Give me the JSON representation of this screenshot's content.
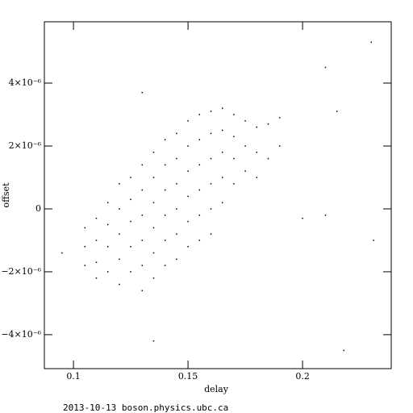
{
  "chart_data": {
    "type": "scatter",
    "xlabel": "delay",
    "ylabel": "offset",
    "footer": "2013-10-13 boson.physics.ubc.ca",
    "color": "#000000",
    "xlim": [
      0.0873,
      0.2387
    ],
    "ylim": [
      -5.08e-06,
      5.95e-06
    ],
    "xticks": [
      0.1,
      0.15,
      0.2
    ],
    "yticks": [
      {
        "value": -4e-06,
        "label": "−4×10⁻⁶"
      },
      {
        "value": -2e-06,
        "label": "−2×10⁻⁶"
      },
      0,
      {
        "value": 2e-06,
        "label": "2×10⁻⁶"
      },
      {
        "value": 4e-06,
        "label": "4×10⁻⁶"
      }
    ],
    "x": [
      0.105,
      0.105,
      0.105,
      0.11,
      0.11,
      0.11,
      0.11,
      0.115,
      0.115,
      0.115,
      0.115,
      0.12,
      0.12,
      0.12,
      0.12,
      0.12,
      0.125,
      0.125,
      0.125,
      0.125,
      0.125,
      0.13,
      0.13,
      0.13,
      0.13,
      0.13,
      0.13,
      0.135,
      0.135,
      0.135,
      0.135,
      0.135,
      0.135,
      0.14,
      0.14,
      0.14,
      0.14,
      0.14,
      0.14,
      0.145,
      0.145,
      0.145,
      0.145,
      0.145,
      0.145,
      0.15,
      0.15,
      0.15,
      0.15,
      0.15,
      0.15,
      0.155,
      0.155,
      0.155,
      0.155,
      0.155,
      0.155,
      0.16,
      0.16,
      0.16,
      0.16,
      0.16,
      0.16,
      0.165,
      0.165,
      0.165,
      0.165,
      0.165,
      0.17,
      0.17,
      0.17,
      0.17,
      0.175,
      0.175,
      0.175,
      0.18,
      0.18,
      0.18,
      0.185,
      0.185,
      0.19,
      0.19,
      0.23,
      0.231,
      0.21,
      0.218,
      0.135,
      0.095,
      0.2,
      0.21,
      0.13,
      0.215
    ],
    "y": [
      -1.2e-06,
      -6e-07,
      -1.8e-06,
      -3e-07,
      -1e-06,
      -1.7e-06,
      -2.2e-06,
      2e-07,
      -5e-07,
      -1.2e-06,
      -2e-06,
      8e-07,
      0,
      -8e-07,
      -1.6e-06,
      -2.4e-06,
      1e-06,
      3e-07,
      -4e-07,
      -1.2e-06,
      -2e-06,
      1.4e-06,
      6e-07,
      -2e-07,
      -1e-06,
      -1.8e-06,
      -2.6e-06,
      1.8e-06,
      1e-06,
      2e-07,
      -6e-07,
      -1.4e-06,
      -2.2e-06,
      2.2e-06,
      1.4e-06,
      6e-07,
      -2e-07,
      -1e-06,
      -1.8e-06,
      2.4e-06,
      1.6e-06,
      8e-07,
      0,
      -8e-07,
      -1.6e-06,
      2.8e-06,
      2e-06,
      1.2e-06,
      4e-07,
      -4e-07,
      -1.2e-06,
      3e-06,
      2.2e-06,
      1.4e-06,
      6e-07,
      -2e-07,
      -1e-06,
      3.1e-06,
      2.4e-06,
      1.6e-06,
      8e-07,
      0,
      -8e-07,
      3.2e-06,
      2.5e-06,
      1.8e-06,
      1e-06,
      2e-07,
      3e-06,
      2.3e-06,
      1.6e-06,
      8e-07,
      2.8e-06,
      2e-06,
      1.2e-06,
      2.6e-06,
      1.8e-06,
      1e-06,
      2.7e-06,
      1.6e-06,
      2.9e-06,
      2e-06,
      5.3e-06,
      -1e-06,
      4.5e-06,
      -4.5e-06,
      -4.2e-06,
      -1.4e-06,
      -3e-07,
      -2e-07,
      3.7e-06,
      3.1e-06
    ]
  }
}
